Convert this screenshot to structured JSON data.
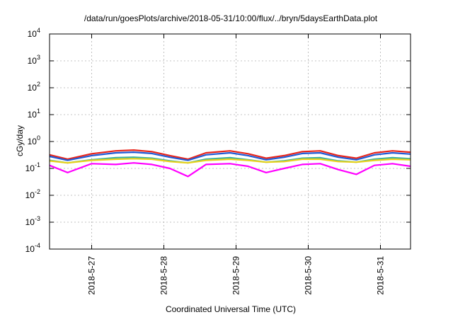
{
  "chart_data": {
    "type": "line",
    "title": "/data/run/goesPlots/archive/2018-05-31/10:00/flux/../bryn/5daysEarthData.plot",
    "xlabel": "Coordinated Universal Time (UTC)",
    "ylabel": "cGy/day",
    "yscale": "log",
    "ylim": [
      0.0001,
      10000
    ],
    "xlim": [
      "2018-05-26 10:00",
      "2018-05-31 10:00"
    ],
    "grid": true,
    "legend": "none",
    "y_ticks": [
      {
        "value": 0.0001,
        "base": "10",
        "exp": "-4"
      },
      {
        "value": 0.001,
        "base": "10",
        "exp": "-3"
      },
      {
        "value": 0.01,
        "base": "10",
        "exp": "-2"
      },
      {
        "value": 0.1,
        "base": "10",
        "exp": "-1"
      },
      {
        "value": 1,
        "base": "10",
        "exp": "0"
      },
      {
        "value": 10,
        "base": "10",
        "exp": "1"
      },
      {
        "value": 100,
        "base": "10",
        "exp": "2"
      },
      {
        "value": 1000,
        "base": "10",
        "exp": "3"
      },
      {
        "value": 10000,
        "base": "10",
        "exp": "4"
      }
    ],
    "x_ticks": [
      {
        "label": "2018-5-27",
        "date": "2018-05-27 00:00"
      },
      {
        "label": "2018-5-28",
        "date": "2018-05-28 00:00"
      },
      {
        "label": "2018-5-29",
        "date": "2018-05-29 00:00"
      },
      {
        "label": "2018-5-30",
        "date": "2018-05-30 00:00"
      },
      {
        "label": "2018-5-31",
        "date": "2018-05-31 00:00"
      }
    ],
    "series": [
      {
        "color": "#e8251b",
        "x": [
          "2018-05-26 10:00",
          "2018-05-26 16:00",
          "2018-05-27 00:00",
          "2018-05-27 08:00",
          "2018-05-27 14:00",
          "2018-05-27 20:00",
          "2018-05-28 02:00",
          "2018-05-28 08:00",
          "2018-05-28 14:00",
          "2018-05-28 22:00",
          "2018-05-29 04:00",
          "2018-05-29 10:00",
          "2018-05-29 16:00",
          "2018-05-29 22:00",
          "2018-05-30 04:00",
          "2018-05-30 10:00",
          "2018-05-30 16:00",
          "2018-05-30 22:00",
          "2018-05-31 04:00",
          "2018-05-31 10:00"
        ],
        "y": [
          0.32,
          0.22,
          0.35,
          0.45,
          0.48,
          0.42,
          0.3,
          0.22,
          0.38,
          0.45,
          0.35,
          0.24,
          0.3,
          0.42,
          0.45,
          0.3,
          0.24,
          0.38,
          0.45,
          0.4
        ]
      },
      {
        "color": "#1f5bd6",
        "x": [
          "2018-05-26 10:00",
          "2018-05-26 16:00",
          "2018-05-27 00:00",
          "2018-05-27 08:00",
          "2018-05-27 14:00",
          "2018-05-27 20:00",
          "2018-05-28 02:00",
          "2018-05-28 08:00",
          "2018-05-28 14:00",
          "2018-05-28 22:00",
          "2018-05-29 04:00",
          "2018-05-29 10:00",
          "2018-05-29 16:00",
          "2018-05-29 22:00",
          "2018-05-30 04:00",
          "2018-05-30 10:00",
          "2018-05-30 16:00",
          "2018-05-30 22:00",
          "2018-05-31 04:00",
          "2018-05-31 10:00"
        ],
        "y": [
          0.28,
          0.2,
          0.3,
          0.38,
          0.4,
          0.36,
          0.26,
          0.2,
          0.32,
          0.38,
          0.3,
          0.21,
          0.26,
          0.36,
          0.38,
          0.26,
          0.21,
          0.32,
          0.38,
          0.34
        ]
      },
      {
        "color": "#3bb0a0",
        "x": [
          "2018-05-26 10:00",
          "2018-05-26 16:00",
          "2018-05-27 00:00",
          "2018-05-27 08:00",
          "2018-05-27 14:00",
          "2018-05-27 20:00",
          "2018-05-28 02:00",
          "2018-05-28 08:00",
          "2018-05-28 14:00",
          "2018-05-28 22:00",
          "2018-05-29 04:00",
          "2018-05-29 10:00",
          "2018-05-29 16:00",
          "2018-05-29 22:00",
          "2018-05-30 04:00",
          "2018-05-30 10:00",
          "2018-05-30 16:00",
          "2018-05-30 22:00",
          "2018-05-31 04:00",
          "2018-05-31 10:00"
        ],
        "y": [
          0.2,
          0.16,
          0.21,
          0.25,
          0.26,
          0.24,
          0.19,
          0.16,
          0.22,
          0.25,
          0.21,
          0.17,
          0.19,
          0.24,
          0.25,
          0.19,
          0.17,
          0.22,
          0.25,
          0.23
        ]
      },
      {
        "color": "#e8d21b",
        "x": [
          "2018-05-26 10:00",
          "2018-05-26 16:00",
          "2018-05-27 00:00",
          "2018-05-27 08:00",
          "2018-05-27 14:00",
          "2018-05-27 20:00",
          "2018-05-28 02:00",
          "2018-05-28 08:00",
          "2018-05-28 14:00",
          "2018-05-28 22:00",
          "2018-05-29 04:00",
          "2018-05-29 10:00",
          "2018-05-29 16:00",
          "2018-05-29 22:00",
          "2018-05-30 04:00",
          "2018-05-30 10:00",
          "2018-05-30 16:00",
          "2018-05-30 22:00",
          "2018-05-31 04:00",
          "2018-05-31 10:00"
        ],
        "y": [
          0.19,
          0.16,
          0.2,
          0.22,
          0.23,
          0.22,
          0.18,
          0.16,
          0.2,
          0.22,
          0.2,
          0.17,
          0.18,
          0.22,
          0.22,
          0.18,
          0.17,
          0.2,
          0.22,
          0.21
        ]
      },
      {
        "color": "#ff00ff",
        "x": [
          "2018-05-26 10:00",
          "2018-05-26 16:00",
          "2018-05-27 00:00",
          "2018-05-27 08:00",
          "2018-05-27 14:00",
          "2018-05-27 20:00",
          "2018-05-28 02:00",
          "2018-05-28 08:00",
          "2018-05-28 14:00",
          "2018-05-28 22:00",
          "2018-05-29 04:00",
          "2018-05-29 10:00",
          "2018-05-29 16:00",
          "2018-05-29 22:00",
          "2018-05-30 04:00",
          "2018-05-30 10:00",
          "2018-05-30 16:00",
          "2018-05-30 22:00",
          "2018-05-31 04:00",
          "2018-05-31 10:00"
        ],
        "y": [
          0.13,
          0.07,
          0.15,
          0.14,
          0.16,
          0.14,
          0.1,
          0.05,
          0.14,
          0.15,
          0.12,
          0.07,
          0.1,
          0.14,
          0.15,
          0.09,
          0.06,
          0.13,
          0.15,
          0.12
        ]
      }
    ]
  }
}
